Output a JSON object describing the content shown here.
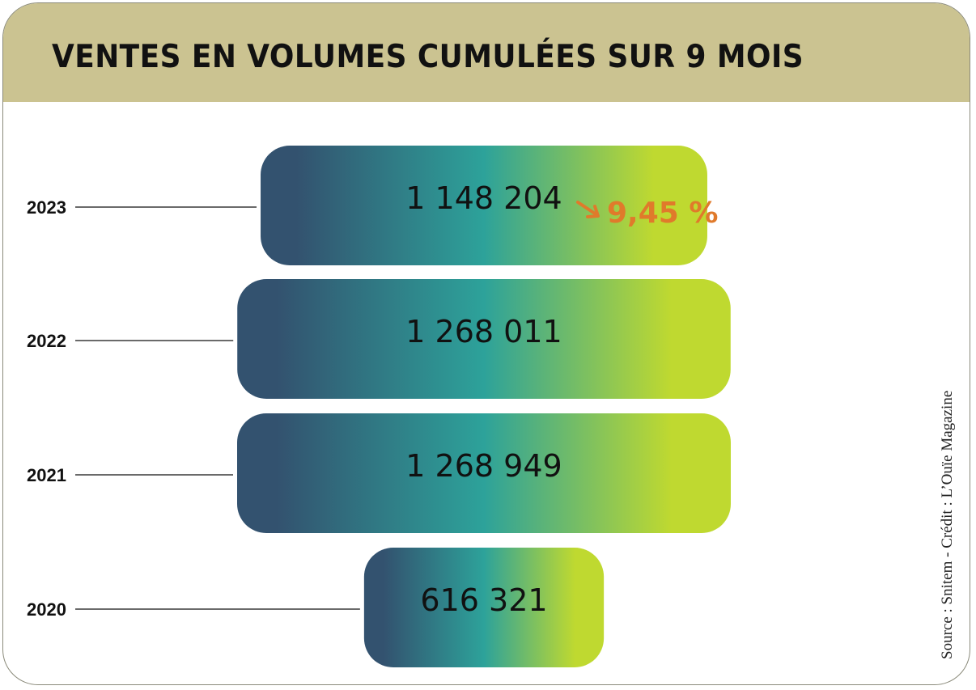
{
  "title": "VENTES EN VOLUMES CUMULÉES SUR 9 MOIS",
  "source": "Source : Snitem - Crédit : L’Ouïe Magazine",
  "colors": {
    "header": "#cbc391",
    "gradient": [
      "#33526f",
      "#2da29a",
      "#bfd930"
    ],
    "change": "#e07a2b"
  },
  "change_icon": "arrow-down-right-icon",
  "chart_data": {
    "type": "bar",
    "orientation": "horizontal-centered",
    "categories": [
      "2023",
      "2022",
      "2021",
      "2020"
    ],
    "values": [
      1148204,
      1268011,
      1268949,
      616321
    ],
    "value_labels": [
      "1 148 204",
      "1 268 011",
      "1 268 949",
      "616 321"
    ],
    "change_label": "9,45 %",
    "change_direction": "down"
  }
}
